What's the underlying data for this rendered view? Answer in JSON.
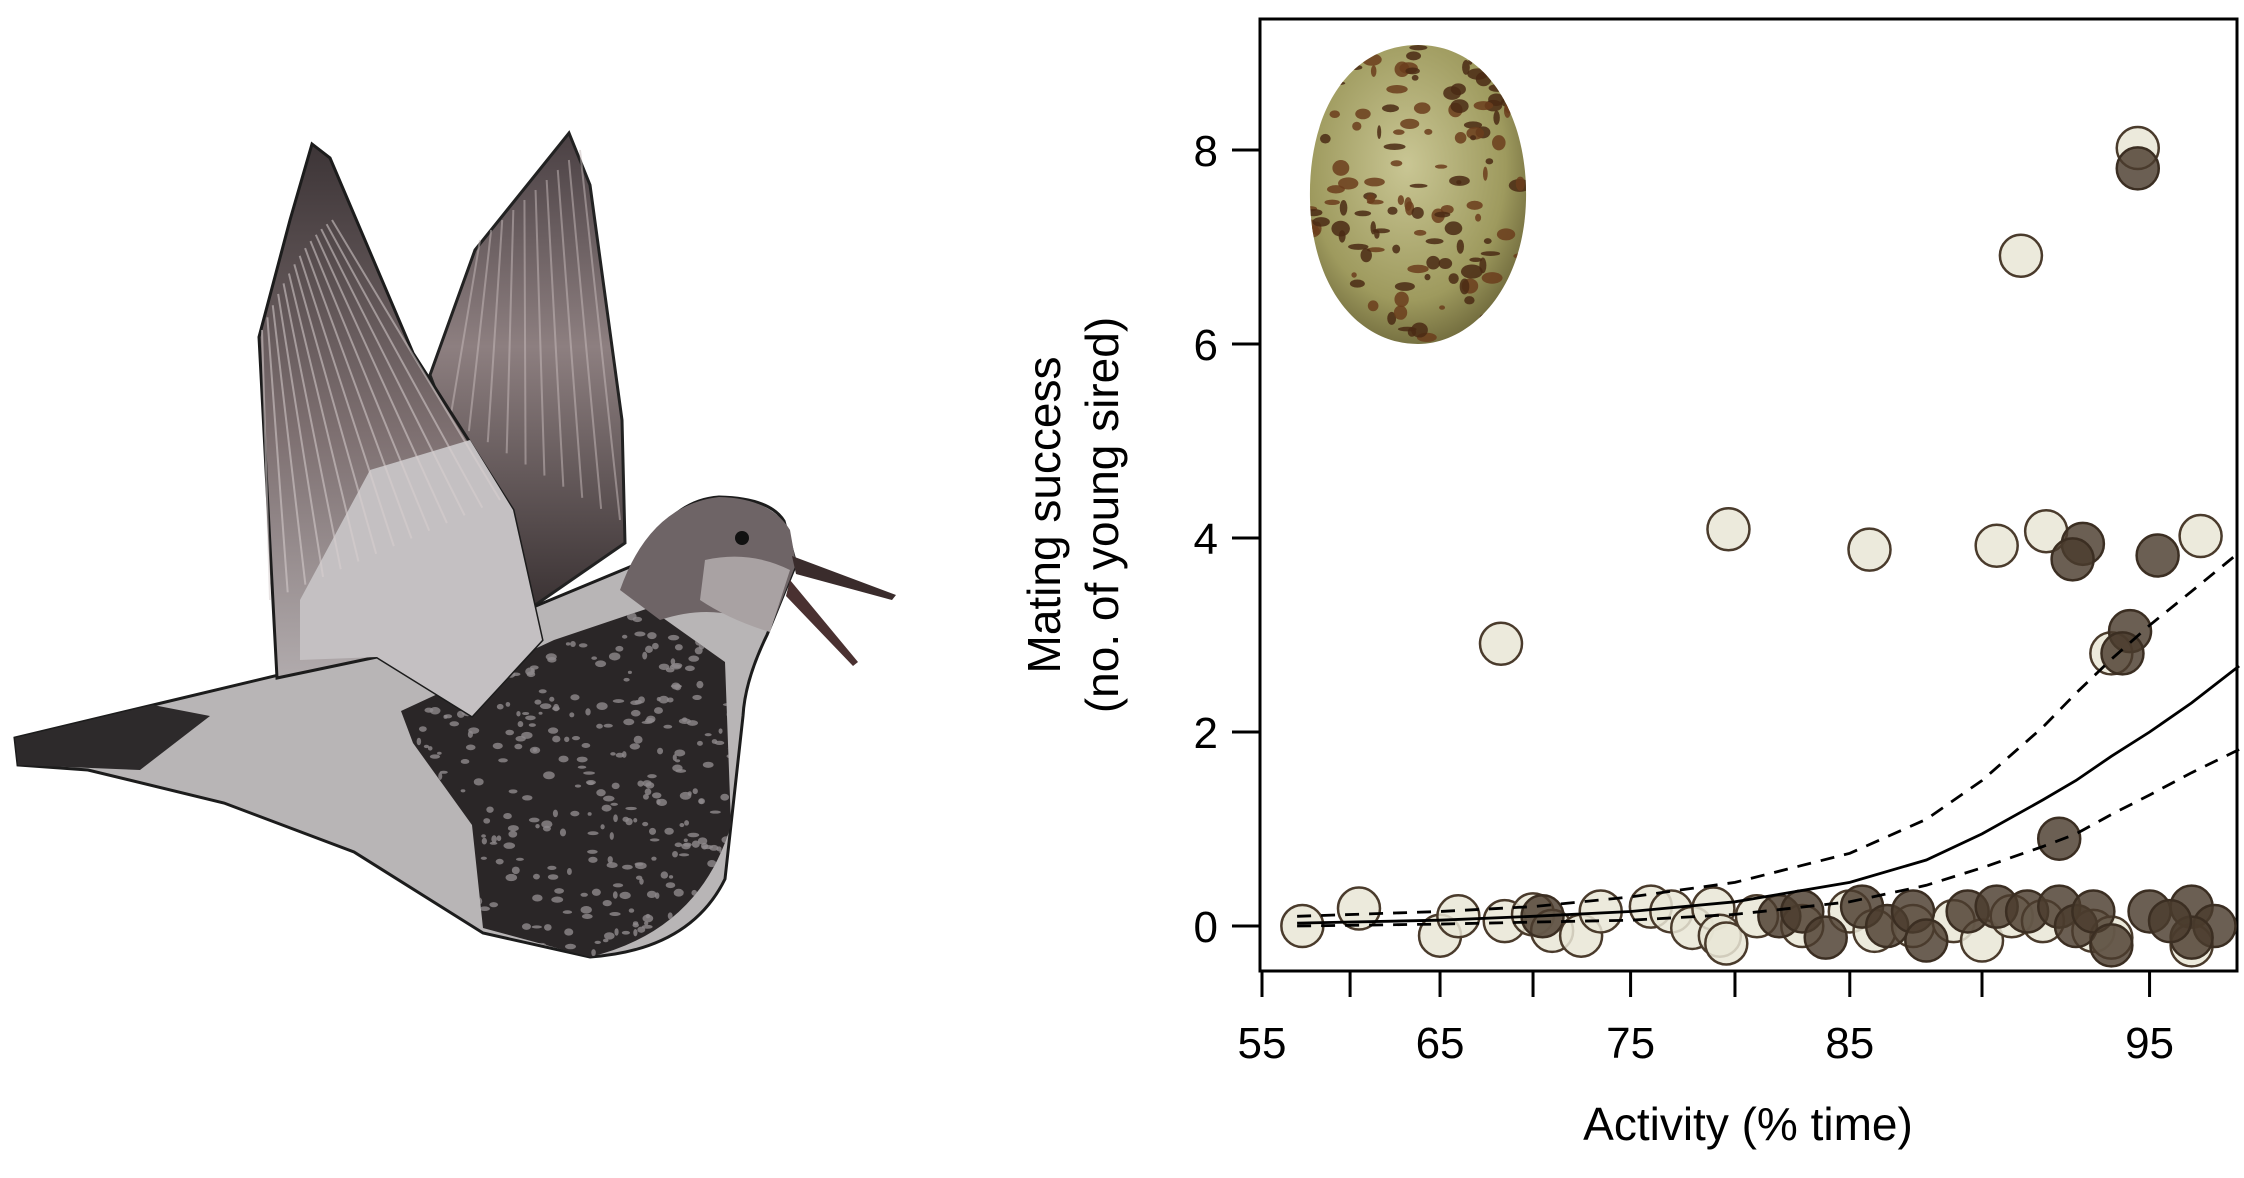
{
  "illustration": {
    "subject": "bird-in-flight",
    "inset": "speckled-egg"
  },
  "chart_data": {
    "type": "scatter",
    "title": "",
    "xlabel": "Activity (% time)",
    "ylabel_lines": [
      "Mating success",
      "(no. of young sired)"
    ],
    "x_scale": "arcsine-square-root",
    "xlim": [
      55,
      97
    ],
    "ylim": [
      -0.46,
      9.35
    ],
    "x_ticks": [
      55,
      60,
      65,
      70,
      75,
      80,
      85,
      90,
      95
    ],
    "x_tick_labels": [
      "55",
      "65",
      "75",
      "85",
      "95"
    ],
    "y_ticks": [
      0,
      2,
      4,
      6,
      8
    ],
    "y_tick_labels": [
      "0",
      "2",
      "4",
      "6",
      "8"
    ],
    "grid": false,
    "frame": true,
    "series": [
      {
        "fill": "#e9e6d6",
        "stroke": "#4a3b2c",
        "opacity": 0.85,
        "points": [
          [
            57.3,
            0
          ],
          [
            60.5,
            0.18
          ],
          [
            65,
            -0.1
          ],
          [
            66,
            0.1
          ],
          [
            68.5,
            0.05
          ],
          [
            70,
            0.12
          ],
          [
            71,
            -0.05
          ],
          [
            72.5,
            -0.1
          ],
          [
            73.5,
            0.15
          ],
          [
            76,
            0.2
          ],
          [
            77,
            0.15
          ],
          [
            78,
            -0.02
          ],
          [
            79,
            0.18
          ],
          [
            79.3,
            -0.1
          ],
          [
            79.6,
            -0.18
          ],
          [
            81,
            0.1
          ],
          [
            83,
            0.0
          ],
          [
            85,
            0.15
          ],
          [
            86,
            -0.05
          ],
          [
            87.5,
            0.0
          ],
          [
            89,
            0.05
          ],
          [
            90,
            -0.15
          ],
          [
            91,
            0.1
          ],
          [
            92,
            0.05
          ],
          [
            93.5,
            -0.05
          ],
          [
            94,
            -0.12
          ],
          [
            96,
            -0.2
          ],
          [
            68.3,
            2.91
          ],
          [
            79.7,
            4.09
          ],
          [
            85.8,
            3.88
          ],
          [
            90.5,
            3.92
          ],
          [
            92.1,
            4.07
          ],
          [
            96.2,
            4.02
          ],
          [
            91.3,
            6.91
          ],
          [
            94.7,
            8.02
          ],
          [
            94.0,
            2.81
          ]
        ]
      },
      {
        "fill": "#4b3c2d",
        "stroke": "#3b2e22",
        "opacity": 0.82,
        "points": [
          [
            70.5,
            0.1
          ],
          [
            82,
            0.1
          ],
          [
            83,
            0.15
          ],
          [
            84,
            -0.12
          ],
          [
            85.5,
            0.2
          ],
          [
            86.5,
            0.0
          ],
          [
            87.5,
            0.15
          ],
          [
            88,
            -0.15
          ],
          [
            89.5,
            0.15
          ],
          [
            90.5,
            0.2
          ],
          [
            91.5,
            0.15
          ],
          [
            92.5,
            0.2
          ],
          [
            93,
            0.0
          ],
          [
            93.5,
            0.15
          ],
          [
            94,
            -0.2
          ],
          [
            95,
            0.15
          ],
          [
            96,
            0.2
          ],
          [
            96.5,
            0.0
          ],
          [
            96,
            -0.12
          ],
          [
            95.5,
            0.05
          ],
          [
            94.7,
            7.81
          ],
          [
            93.2,
            3.94
          ],
          [
            92.9,
            3.78
          ],
          [
            95.2,
            3.82
          ],
          [
            94.5,
            3.04
          ],
          [
            94.3,
            2.81
          ],
          [
            92.5,
            0.9
          ]
        ]
      }
    ],
    "fit": {
      "style": "solid",
      "points": [
        [
          57,
          0.03
        ],
        [
          65,
          0.06
        ],
        [
          70,
          0.1
        ],
        [
          75,
          0.15
        ],
        [
          80,
          0.25
        ],
        [
          85,
          0.45
        ],
        [
          88,
          0.68
        ],
        [
          90,
          0.95
        ],
        [
          92,
          1.3
        ],
        [
          93,
          1.5
        ],
        [
          94,
          1.75
        ],
        [
          95,
          2.0
        ],
        [
          96,
          2.3
        ],
        [
          97,
          2.68
        ]
      ]
    },
    "ci_upper": {
      "style": "dashed",
      "points": [
        [
          57,
          0.1
        ],
        [
          65,
          0.15
        ],
        [
          70,
          0.2
        ],
        [
          75,
          0.3
        ],
        [
          80,
          0.45
        ],
        [
          85,
          0.75
        ],
        [
          88,
          1.1
        ],
        [
          90,
          1.5
        ],
        [
          92,
          2.05
        ],
        [
          93,
          2.4
        ],
        [
          94,
          2.75
        ],
        [
          95,
          3.1
        ],
        [
          96,
          3.45
        ],
        [
          97,
          3.85
        ]
      ]
    },
    "ci_lower": {
      "style": "dashed",
      "points": [
        [
          57,
          0.0
        ],
        [
          65,
          0.02
        ],
        [
          70,
          0.04
        ],
        [
          75,
          0.06
        ],
        [
          80,
          0.12
        ],
        [
          85,
          0.25
        ],
        [
          88,
          0.42
        ],
        [
          90,
          0.6
        ],
        [
          92,
          0.82
        ],
        [
          93,
          0.95
        ],
        [
          94,
          1.15
        ],
        [
          95,
          1.35
        ],
        [
          96,
          1.58
        ],
        [
          97,
          1.82
        ]
      ]
    }
  }
}
